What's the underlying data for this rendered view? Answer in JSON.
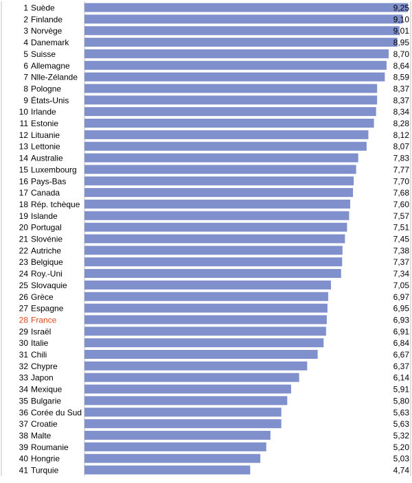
{
  "colors": {
    "bar": "#8090cc",
    "highlight_text": "#d9481c",
    "label_text": "#000000",
    "divider": "#c0c0c0"
  },
  "chart_data": {
    "type": "bar",
    "orientation": "horizontal",
    "highlight": "France",
    "categories": [
      "Suède",
      "Finlande",
      "Norvège",
      "Danemark",
      "Suisse",
      "Allemagne",
      "Nlle-Zélande",
      "Pologne",
      "États-Unis",
      "Irlande",
      "Estonie",
      "Lituanie",
      "Lettonie",
      "Australie",
      "Luxembourg",
      "Pays-Bas",
      "Canada",
      "Rép. tchèque",
      "Islande",
      "Portugal",
      "Slovénie",
      "Autriche",
      "Belgique",
      "Roy.-Uni",
      "Slovaquie",
      "Grèce",
      "Espagne",
      "France",
      "Israël",
      "Italie",
      "Chili",
      "Chypre",
      "Japon",
      "Mexique",
      "Bulgarie",
      "Corée du Sud",
      "Croatie",
      "Malte",
      "Roumanie",
      "Hongrie",
      "Turquie"
    ],
    "ranks": [
      1,
      2,
      3,
      4,
      5,
      6,
      7,
      8,
      9,
      10,
      11,
      12,
      13,
      14,
      15,
      16,
      17,
      18,
      19,
      20,
      21,
      22,
      23,
      24,
      25,
      26,
      27,
      28,
      29,
      30,
      31,
      32,
      33,
      34,
      35,
      36,
      37,
      38,
      39,
      40,
      41
    ],
    "values": [
      9.25,
      9.1,
      9.01,
      8.95,
      8.7,
      8.64,
      8.59,
      8.37,
      8.37,
      8.34,
      8.28,
      8.12,
      8.07,
      7.83,
      7.77,
      7.7,
      7.68,
      7.6,
      7.57,
      7.51,
      7.45,
      7.38,
      7.37,
      7.34,
      7.05,
      6.97,
      6.95,
      6.93,
      6.91,
      6.84,
      6.67,
      6.37,
      6.14,
      5.91,
      5.8,
      5.63,
      5.63,
      5.32,
      5.2,
      5.03,
      4.74
    ],
    "value_labels": [
      "9,25",
      "9,10",
      "9,01",
      "8,95",
      "8,70",
      "8,64",
      "8,59",
      "8,37",
      "8,37",
      "8,34",
      "8,28",
      "8,12",
      "8,07",
      "7,83",
      "7,77",
      "7,70",
      "7,68",
      "7,60",
      "7,57",
      "7,51",
      "7,45",
      "7,38",
      "7,37",
      "7,34",
      "7,05",
      "6,97",
      "6,95",
      "6,93",
      "6,91",
      "6,84",
      "6,67",
      "6,37",
      "6,14",
      "5,91",
      "5,80",
      "5,63",
      "5,63",
      "5,32",
      "5,20",
      "5,03",
      "4,74"
    ],
    "xlim": [
      0,
      9.25
    ],
    "grid": false,
    "legend": false
  }
}
